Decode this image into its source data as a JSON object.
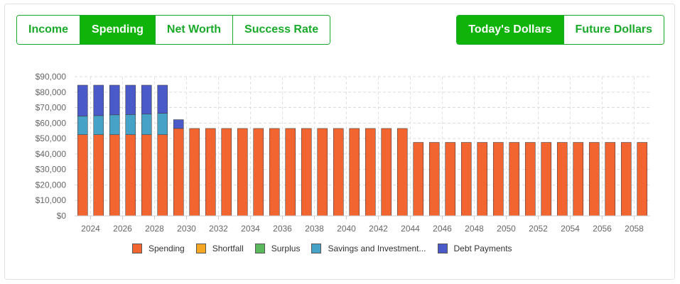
{
  "view_tabs": [
    {
      "label": "Income",
      "active": false
    },
    {
      "label": "Spending",
      "active": true
    },
    {
      "label": "Net Worth",
      "active": false
    },
    {
      "label": "Success Rate",
      "active": false
    }
  ],
  "dollar_tabs": [
    {
      "label": "Today's Dollars",
      "active": true
    },
    {
      "label": "Future Dollars",
      "active": false
    }
  ],
  "colors": {
    "accent": "#10b30a",
    "spending": "#f26430",
    "shortfall": "#f5a623",
    "surplus": "#5cb85c",
    "savings": "#46a3c7",
    "debt": "#4a5ac8"
  },
  "chart_data": {
    "type": "bar",
    "stacked": true,
    "title": "",
    "xlabel": "",
    "ylabel": "",
    "ylim": [
      0,
      90000
    ],
    "y_ticks": [
      "$0",
      "$10,000",
      "$20,000",
      "$30,000",
      "$40,000",
      "$50,000",
      "$60,000",
      "$70,000",
      "$80,000",
      "$90,000"
    ],
    "x_tick_labels": [
      "2024",
      "2026",
      "2028",
      "2030",
      "2032",
      "2034",
      "2036",
      "2038",
      "2040",
      "2042",
      "2044",
      "2046",
      "2048",
      "2050",
      "2052",
      "2054",
      "2056",
      "2058"
    ],
    "grid": true,
    "legend_position": "bottom",
    "categories": [
      2023,
      2024,
      2025,
      2026,
      2027,
      2028,
      2029,
      2030,
      2031,
      2032,
      2033,
      2034,
      2035,
      2036,
      2037,
      2038,
      2039,
      2040,
      2041,
      2042,
      2043,
      2044,
      2045,
      2046,
      2047,
      2048,
      2049,
      2050,
      2051,
      2052,
      2053,
      2054,
      2055,
      2056,
      2057,
      2058
    ],
    "series": [
      {
        "name": "Spending",
        "color_key": "spending",
        "values": [
          52500,
          52500,
          52500,
          52500,
          52500,
          52500,
          56500,
          56500,
          56500,
          56500,
          56500,
          56500,
          56500,
          56500,
          56500,
          56500,
          56500,
          56500,
          56500,
          56500,
          56500,
          47500,
          47500,
          47500,
          47500,
          47500,
          47500,
          47500,
          47500,
          47500,
          47500,
          47500,
          47500,
          47500,
          47500,
          47500
        ]
      },
      {
        "name": "Shortfall",
        "color_key": "shortfall",
        "values": [
          0,
          0,
          0,
          0,
          0,
          0,
          0,
          0,
          0,
          0,
          0,
          0,
          0,
          0,
          0,
          0,
          0,
          0,
          0,
          0,
          0,
          0,
          0,
          0,
          0,
          0,
          0,
          0,
          0,
          0,
          0,
          0,
          0,
          0,
          0,
          0
        ]
      },
      {
        "name": "Surplus",
        "color_key": "surplus",
        "values": [
          0,
          0,
          0,
          0,
          0,
          0,
          0,
          0,
          0,
          0,
          0,
          0,
          0,
          0,
          0,
          0,
          0,
          0,
          0,
          0,
          0,
          0,
          0,
          0,
          0,
          0,
          0,
          0,
          0,
          0,
          0,
          0,
          0,
          0,
          0,
          0
        ]
      },
      {
        "name": "Savings and Investment...",
        "color_key": "savings",
        "values": [
          12000,
          12300,
          12800,
          13000,
          13300,
          13800,
          0,
          0,
          0,
          0,
          0,
          0,
          0,
          0,
          0,
          0,
          0,
          0,
          0,
          0,
          0,
          0,
          0,
          0,
          0,
          0,
          0,
          0,
          0,
          0,
          0,
          0,
          0,
          0,
          0,
          0
        ]
      },
      {
        "name": "Debt Payments",
        "color_key": "debt",
        "values": [
          20000,
          19700,
          19200,
          19000,
          18700,
          18200,
          5700,
          0,
          0,
          0,
          0,
          0,
          0,
          0,
          0,
          0,
          0,
          0,
          0,
          0,
          0,
          0,
          0,
          0,
          0,
          0,
          0,
          0,
          0,
          0,
          0,
          0,
          0,
          0,
          0,
          0
        ]
      }
    ]
  }
}
